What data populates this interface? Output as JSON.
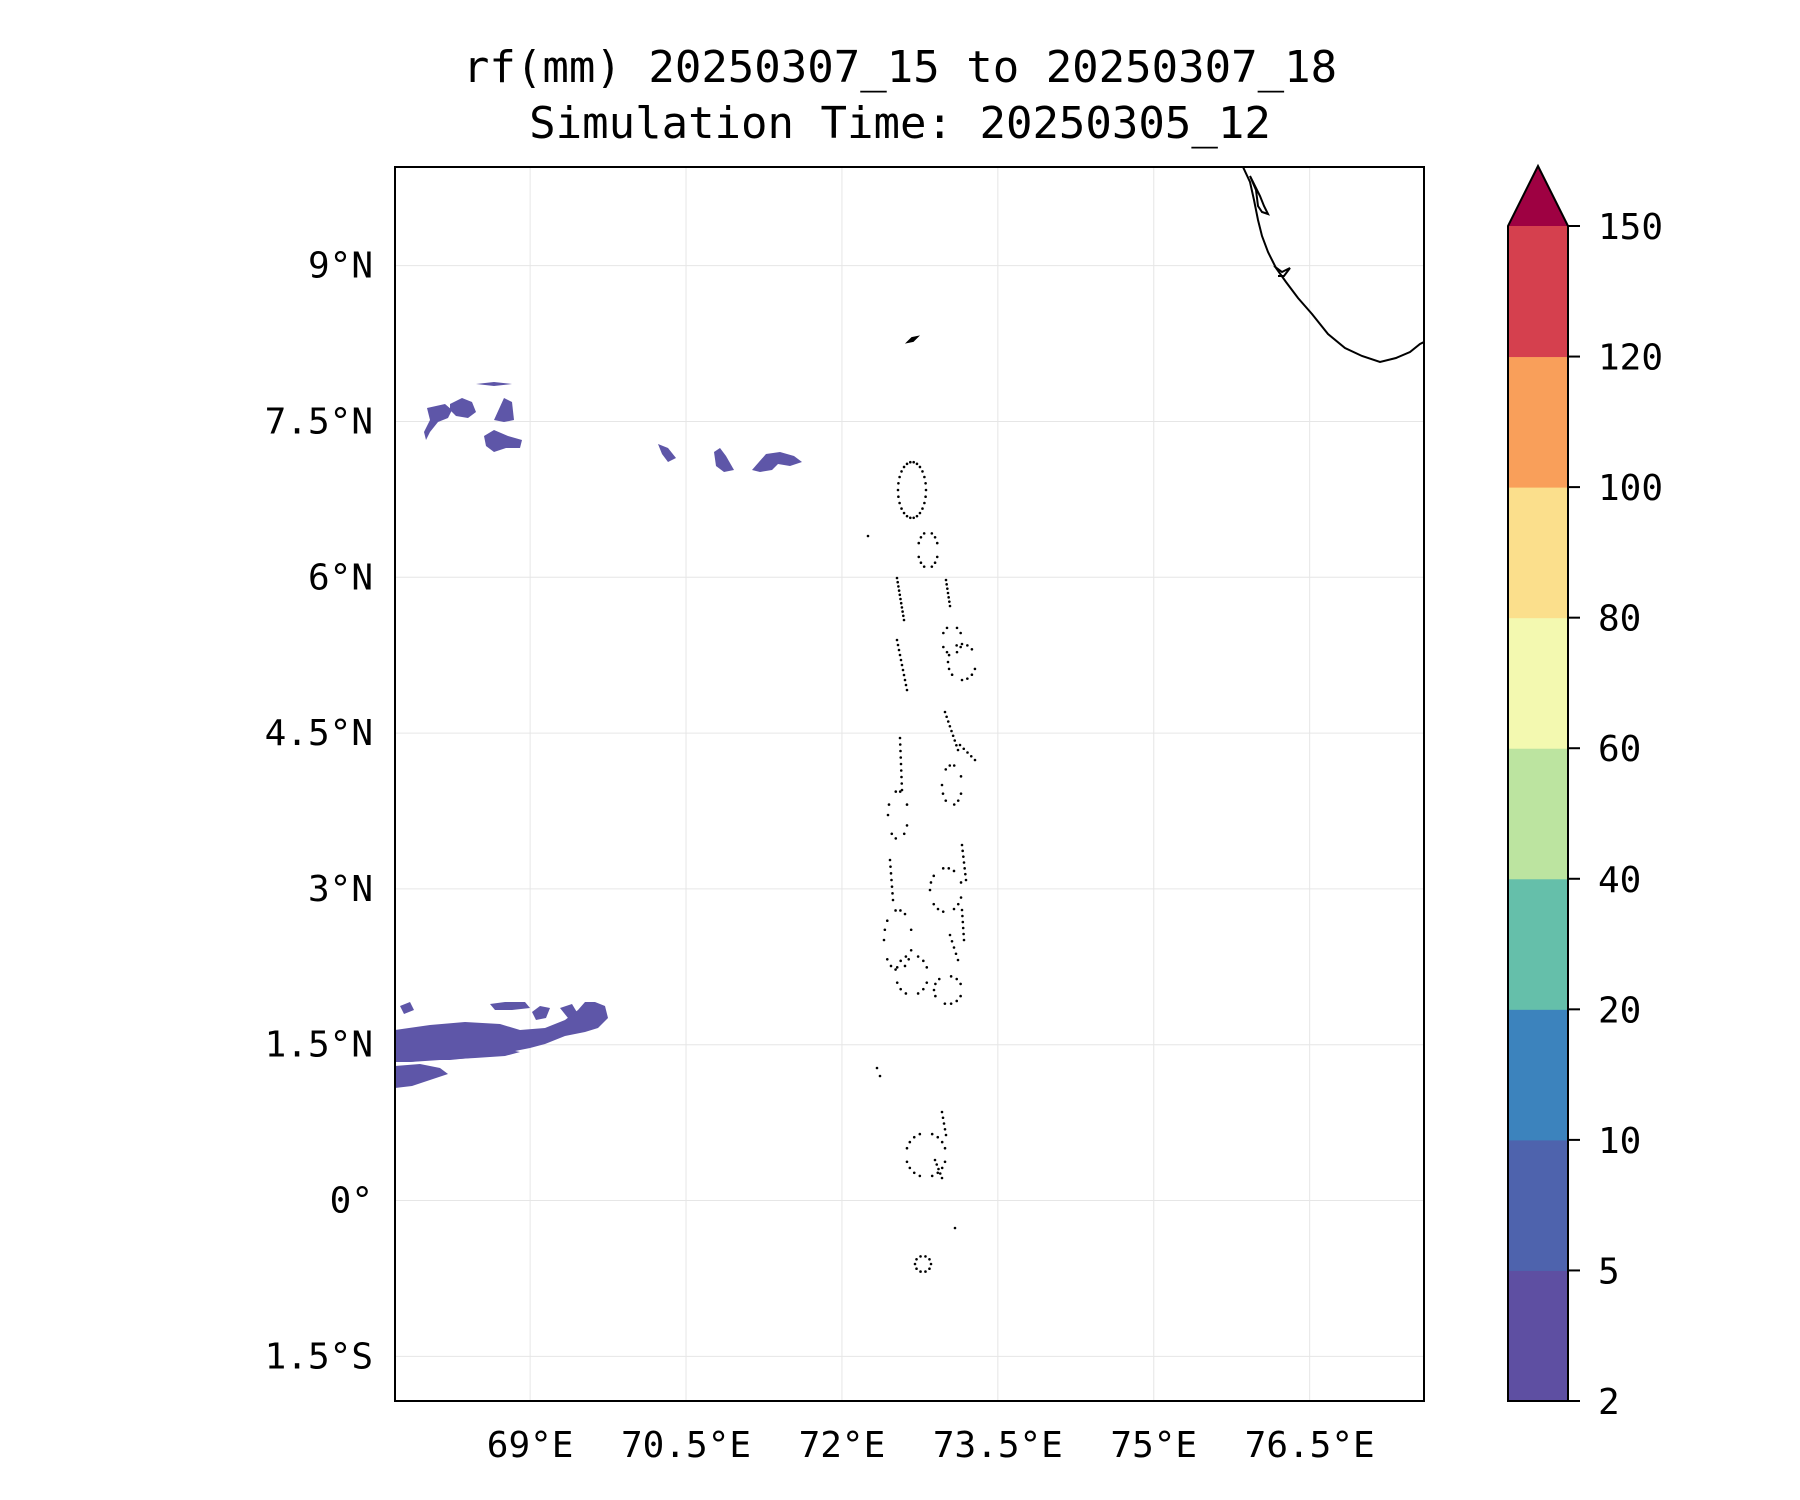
{
  "map": {
    "title_line1": "rf(mm) 20250307_15 to 20250307_18",
    "title_line2": "Simulation Time: 20250305_12",
    "extent": {
      "lon_min": 67.7,
      "lon_max": 77.6,
      "lat_min": -1.93,
      "lat_max": 9.95
    },
    "xticks": [
      {
        "value": 69.0,
        "label": "69°E"
      },
      {
        "value": 70.5,
        "label": "70.5°E"
      },
      {
        "value": 72.0,
        "label": "72°E"
      },
      {
        "value": 73.5,
        "label": "73.5°E"
      },
      {
        "value": 75.0,
        "label": "75°E"
      },
      {
        "value": 76.5,
        "label": "76.5°E"
      }
    ],
    "yticks": [
      {
        "value": 9.0,
        "label": "9°N"
      },
      {
        "value": 7.5,
        "label": "7.5°N"
      },
      {
        "value": 6.0,
        "label": "6°N"
      },
      {
        "value": 4.5,
        "label": "4.5°N"
      },
      {
        "value": 3.0,
        "label": "3°N"
      },
      {
        "value": 1.5,
        "label": "1.5°N"
      },
      {
        "value": 0.0,
        "label": "0°"
      },
      {
        "value": -1.5,
        "label": "1.5°S"
      }
    ],
    "gridlines": true,
    "rain_fill_color": "#5e56a8",
    "coast_color": "#000000"
  },
  "colorbar": {
    "levels": [
      "2",
      "5",
      "10",
      "20",
      "40",
      "60",
      "80",
      "100",
      "120",
      "150"
    ],
    "colors": [
      "#5e4fa2",
      "#4e63ad",
      "#3c83bd",
      "#65bfaa",
      "#bce4a0",
      "#f3f9b0",
      "#fbdf8c",
      "#f99f5a",
      "#d5404e"
    ],
    "extend_color": "#9e0142",
    "extend": "max"
  }
}
